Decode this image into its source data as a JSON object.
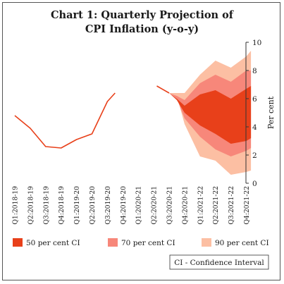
{
  "chart_data": {
    "type": "area",
    "title_line1": "Chart 1: Quarterly Projection of",
    "title_line2": "CPI Inflation (y-o-y)",
    "ylabel": "Per cent",
    "xlabel": "",
    "ylim": [
      0,
      10
    ],
    "yticks": [
      "0",
      "2",
      "4",
      "6",
      "8",
      "10"
    ],
    "y_axis_side": "right",
    "grid": false,
    "categories": [
      "Q1:2018-19",
      "Q2:2018-19",
      "Q3:2018-19",
      "Q4:2018-19",
      "Q1:2019-20",
      "Q2:2019-20",
      "Q3:2019-20",
      "Q4:2019-20",
      "Q1:2020-21",
      "Q2:2020-21",
      "Q3:2020-21",
      "Q4:2020-21",
      "Q1:2021-22",
      "Q2:2021-22",
      "Q3:2021-22",
      "Q4:2021-22"
    ],
    "actual": [
      {
        "x": 0,
        "y": 4.8
      },
      {
        "x": 1,
        "y": 3.9
      },
      {
        "x": 2,
        "y": 2.6
      },
      {
        "x": 3,
        "y": 2.5
      },
      {
        "x": 4,
        "y": 3.1
      },
      {
        "x": 5,
        "y": 3.5
      },
      {
        "x": 6,
        "y": 5.8
      },
      {
        "x": 6.5,
        "y": 6.4
      },
      {
        "x": 7,
        "y": 6.7
      },
      {
        "x": 9.2,
        "y": 6.9
      },
      {
        "x": 10,
        "y": 6.4
      }
    ],
    "actual_segments": [
      [
        0,
        8
      ],
      [
        9,
        11
      ]
    ],
    "projection_x": [
      10,
      10.5,
      11,
      12,
      13,
      14,
      15,
      15.3
    ],
    "bands": [
      {
        "name": "90 per cent CI",
        "color": "#fcbfa3",
        "upper": [
          6.4,
          6.4,
          6.4,
          7.7,
          8.7,
          8.2,
          9.0,
          9.4
        ],
        "lower": [
          6.4,
          6.2,
          4.2,
          1.9,
          1.6,
          0.6,
          0.8,
          0.9
        ]
      },
      {
        "name": "70 per cent CI",
        "color": "#f7877a",
        "upper": [
          6.4,
          6.2,
          5.9,
          7.1,
          7.7,
          7.2,
          8.0,
          8.0
        ],
        "lower": [
          6.4,
          6.0,
          4.6,
          3.3,
          2.4,
          1.9,
          2.3,
          2.5
        ]
      },
      {
        "name": "50 per cent CI",
        "color": "#e8401a",
        "upper": [
          6.4,
          6.0,
          5.5,
          6.3,
          6.6,
          6.0,
          6.7,
          6.9
        ],
        "lower": [
          6.4,
          5.9,
          5.0,
          4.1,
          3.5,
          2.8,
          3.0,
          3.2
        ]
      }
    ],
    "legend": [
      {
        "label": "50 per cent CI",
        "color": "#e8401a"
      },
      {
        "label": "70 per cent CI",
        "color": "#f7877a"
      },
      {
        "label": "90 per cent CI",
        "color": "#fcbfa3"
      }
    ],
    "note": "CI - Confidence Interval",
    "line_color": "#e8401a"
  }
}
